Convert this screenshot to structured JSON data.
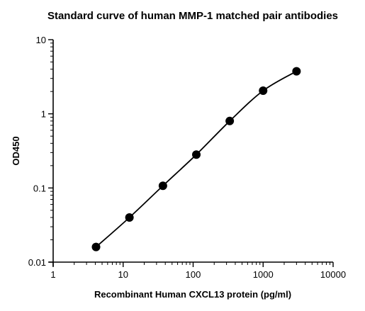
{
  "chart_data": {
    "type": "scatter",
    "title": "Standard curve of human MMP-1 matched pair antibodies",
    "xlabel": "Recombinant Human CXCL13 protein (pg/ml)",
    "ylabel": "OD450",
    "xscale": "log",
    "yscale": "log",
    "xlim": [
      1,
      10000
    ],
    "ylim": [
      0.01,
      10
    ],
    "xticks": [
      "1",
      "10",
      "100",
      "1000",
      "10000"
    ],
    "yticks": [
      "0.01",
      "0.1",
      "1",
      "10"
    ],
    "grid": false,
    "legend": "none",
    "series": [
      {
        "x": [
          4.1,
          12.3,
          37.0,
          111.1,
          333.3,
          1000,
          3000
        ],
        "y": [
          0.016,
          0.04,
          0.107,
          0.282,
          0.8,
          2.05,
          3.75
        ],
        "marker": "filled-circle",
        "fit_line": true,
        "color": "#000000"
      }
    ]
  }
}
